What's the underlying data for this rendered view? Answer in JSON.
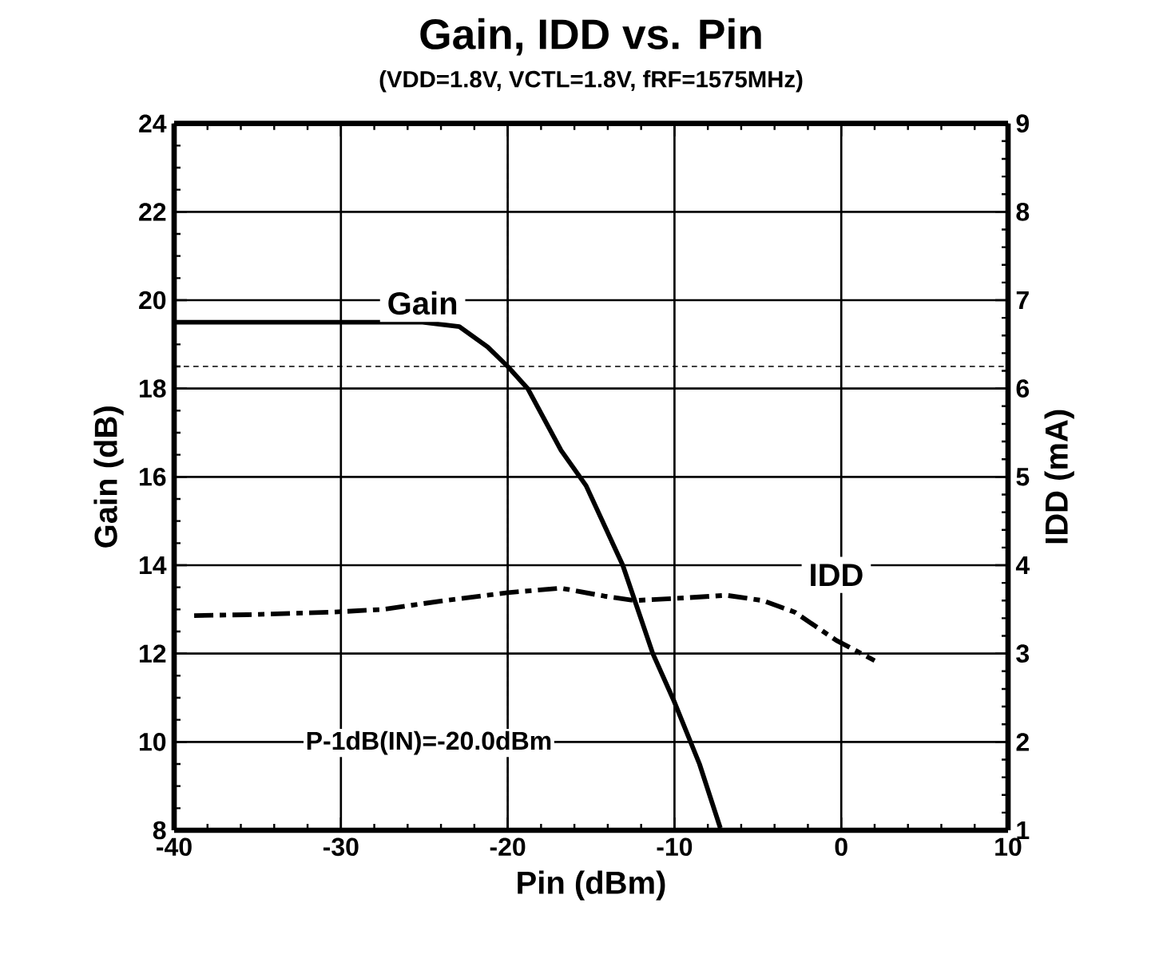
{
  "chart_data": {
    "type": "line",
    "title": "Gain, IDD vs. Pin",
    "subtitle": "(VDD=1.8V, VCTL=1.8V, fRF=1575MHz)",
    "xlabel": "Pin (dBm)",
    "ylabel": "Gain (dB)",
    "y2label": "IDD (mA)",
    "xlim": [
      -40,
      10
    ],
    "xticks": [
      -40,
      -30,
      -20,
      -10,
      0,
      10
    ],
    "ylim": [
      8,
      24
    ],
    "yticks": [
      8,
      10,
      12,
      14,
      16,
      18,
      20,
      22,
      24
    ],
    "y2lim": [
      1,
      9
    ],
    "y2ticks": [
      1,
      2,
      3,
      4,
      5,
      6,
      7,
      8,
      9
    ],
    "grid": true,
    "series": [
      {
        "name": "Gain",
        "color": "#000000",
        "line_style": "solid",
        "x": [
          -40,
          -35,
          -30,
          -25.1,
          -22.9,
          -21.2,
          -20,
          -18.8,
          -16.8,
          -15.3,
          -13.1,
          -11.3,
          -10,
          -8.5,
          -7.25
        ],
        "values": [
          19.5,
          19.5,
          19.5,
          19.5,
          19.4,
          18.94,
          18.5,
          18.0,
          16.6,
          15.8,
          14.0,
          12.0,
          10.9,
          9.5,
          8.05
        ]
      },
      {
        "name": "IDD",
        "color": "#000000",
        "line_style": "dashed",
        "axis": "y2",
        "x": [
          -38.8,
          -35.6,
          -30.4,
          -27.5,
          -23.8,
          -20,
          -16.8,
          -14.2,
          -12.4,
          -9.4,
          -6.9,
          -4.7,
          -2.8,
          -0.3,
          2.0
        ],
        "values": [
          3.43,
          3.44,
          3.47,
          3.5,
          3.6,
          3.69,
          3.74,
          3.65,
          3.6,
          3.63,
          3.66,
          3.6,
          3.47,
          3.15,
          2.92
        ]
      }
    ],
    "ref_lines": [
      {
        "axis": "y",
        "value": 18.5,
        "line_style": "dashed"
      },
      {
        "axis": "x",
        "value": -20,
        "line_style": "dashed",
        "label": "P-1dB(IN)=-20.0dBm"
      }
    ]
  }
}
